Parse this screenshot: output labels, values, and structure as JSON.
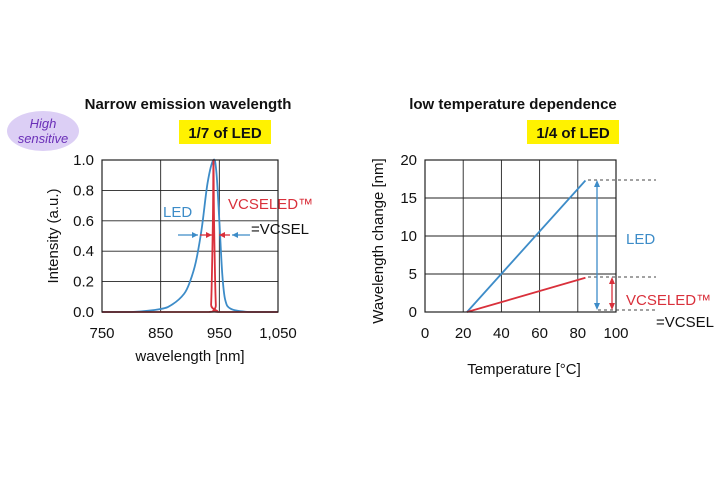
{
  "badge": {
    "line1": "High",
    "line2": "sensitive"
  },
  "chart_data": [
    {
      "type": "line",
      "title": "Narrow emission wavelength",
      "highlight": "1/7 of LED",
      "xlabel": "wavelength [nm]",
      "ylabel": "Intensity (a.u.)",
      "xlim": [
        750,
        1050
      ],
      "ylim": [
        0,
        1.0
      ],
      "x_ticks": [
        750,
        850,
        950,
        1050
      ],
      "x_tick_labels": [
        "750",
        "850",
        "950",
        "1,050"
      ],
      "y_ticks": [
        0,
        0.2,
        0.4,
        0.6,
        0.8,
        1.0
      ],
      "y_tick_labels": [
        "0.0",
        "0.2",
        "0.4",
        "0.6",
        "0.8",
        "1.0"
      ],
      "grid": true,
      "series": [
        {
          "name": "LED",
          "color": "#3d8cc8",
          "x": [
            750,
            800,
            850,
            870,
            890,
            900,
            910,
            920,
            930,
            940,
            945,
            950,
            955,
            960,
            970,
            1000,
            1050
          ],
          "y": [
            0.0,
            0.0,
            0.02,
            0.05,
            0.12,
            0.2,
            0.33,
            0.55,
            0.85,
            1.0,
            0.92,
            0.6,
            0.25,
            0.08,
            0.02,
            0.0,
            0.0
          ]
        },
        {
          "name": "VCSELED™",
          "color": "#d9303b",
          "x": [
            750,
            932,
            936,
            939,
            940,
            941,
            944,
            948,
            1050
          ],
          "y": [
            0.0,
            0.0,
            0.05,
            0.6,
            1.0,
            0.6,
            0.05,
            0.0,
            0.0
          ]
        }
      ],
      "annotations": {
        "led": "LED",
        "vcseled": "VCSELED™",
        "eq": "=VCSEL"
      }
    },
    {
      "type": "line",
      "title": "low temperature dependence",
      "highlight": "1/4 of LED",
      "xlabel": "Temperature [°C]",
      "ylabel": "Wavelength change [nm]",
      "xlim": [
        0,
        100
      ],
      "ylim": [
        0,
        20
      ],
      "x_ticks": [
        0,
        20,
        40,
        60,
        80,
        100
      ],
      "y_ticks": [
        0,
        5,
        10,
        15,
        20
      ],
      "grid": true,
      "series": [
        {
          "name": "LED",
          "color": "#3d8cc8",
          "x": [
            22,
            84
          ],
          "y": [
            0,
            17.3
          ]
        },
        {
          "name": "VCSELED™",
          "color": "#d9303b",
          "x": [
            22,
            84
          ],
          "y": [
            0,
            4.5
          ]
        }
      ],
      "annotations": {
        "led": "LED",
        "vcseled": "VCSELED™",
        "eq": "=VCSEL"
      }
    }
  ]
}
